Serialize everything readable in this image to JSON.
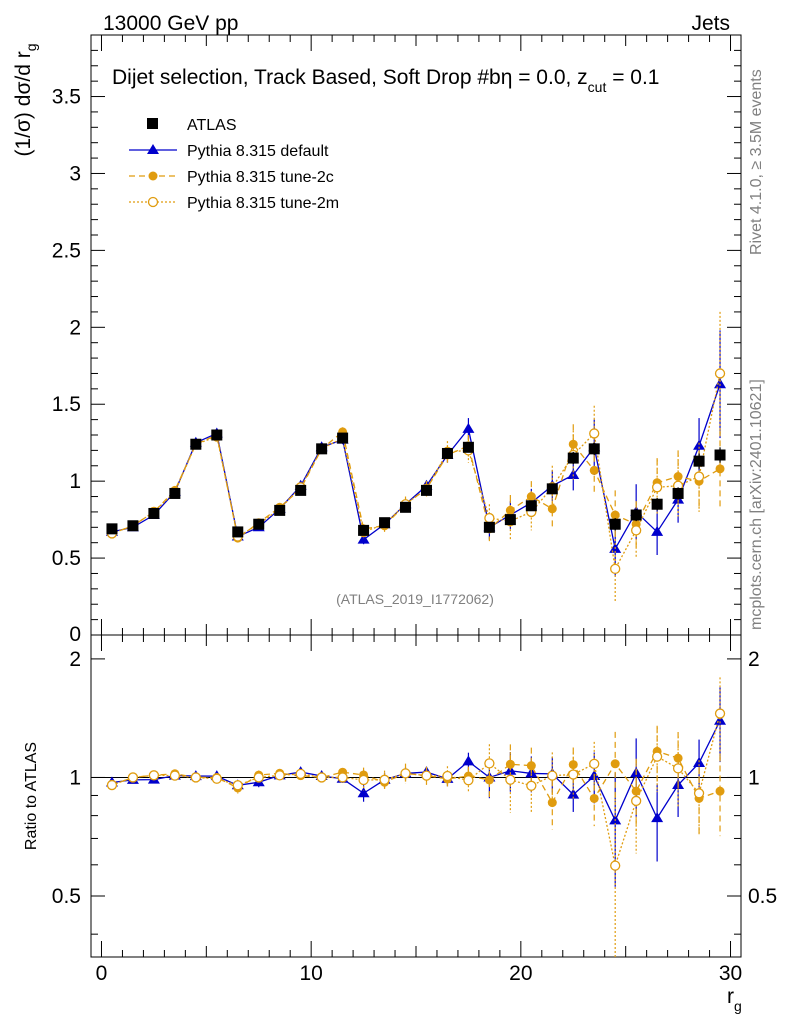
{
  "header": {
    "left": "13000 GeV pp",
    "right": "Jets"
  },
  "chart_data": [
    {
      "type": "line",
      "panel": "main",
      "title": "Dijet selection, Track Based, Soft Drop #b",
      "title_suffix": "η = 0.0, z",
      "title_sub": "cut",
      "title_end": " = 0.1",
      "ylabel": "(1/σ) dσ/d r",
      "ylabel_sub": "g",
      "xlim": [
        -0.5,
        30.5
      ],
      "ylim": [
        0,
        3.9
      ],
      "yticks": [
        "0.5",
        "1",
        "1.5",
        "2",
        "2.5",
        "3",
        "3.5"
      ],
      "ytick_values": [
        0.5,
        1,
        1.5,
        2,
        2.5,
        3,
        3.5
      ],
      "bottom_tick_label": "0",
      "watermark": "(ATLAS_2019_I1772062)",
      "x": [
        0.5,
        1.5,
        2.5,
        3.5,
        4.5,
        5.5,
        6.5,
        7.5,
        8.5,
        9.5,
        10.5,
        11.5,
        12.5,
        13.5,
        14.5,
        15.5,
        16.5,
        17.5,
        18.5,
        19.5,
        20.5,
        21.5,
        22.5,
        23.5,
        24.5,
        25.5,
        26.5,
        27.5,
        28.5,
        29.5
      ],
      "series": [
        {
          "name": "ATLAS",
          "style": "data",
          "values": [
            0.69,
            0.71,
            0.79,
            0.92,
            1.24,
            1.3,
            0.67,
            0.72,
            0.81,
            0.94,
            1.21,
            1.28,
            0.68,
            0.73,
            0.83,
            0.94,
            1.18,
            1.22,
            0.7,
            0.75,
            0.84,
            0.95,
            1.15,
            1.21,
            0.72,
            0.78,
            0.85,
            0.92,
            1.13,
            1.17
          ],
          "errors": [
            0.01,
            0.01,
            0.01,
            0.01,
            0.01,
            0.02,
            0.02,
            0.01,
            0.01,
            0.01,
            0.02,
            0.02,
            0.02,
            0.02,
            0.02,
            0.02,
            0.02,
            0.03,
            0.03,
            0.03,
            0.03,
            0.03,
            0.04,
            0.04,
            0.04,
            0.04,
            0.04,
            0.04,
            0.05,
            0.05
          ]
        },
        {
          "name": "Pythia 8.315 default",
          "style": "default",
          "values": [
            0.67,
            0.7,
            0.78,
            0.93,
            1.25,
            1.31,
            0.64,
            0.7,
            0.82,
            0.97,
            1.22,
            1.27,
            0.62,
            0.72,
            0.85,
            0.97,
            1.17,
            1.34,
            0.7,
            0.78,
            0.86,
            0.97,
            1.04,
            1.22,
            0.56,
            0.8,
            0.67,
            0.88,
            1.23,
            1.63
          ],
          "errors": [
            0.01,
            0.01,
            0.01,
            0.01,
            0.02,
            0.02,
            0.02,
            0.02,
            0.02,
            0.02,
            0.02,
            0.03,
            0.03,
            0.03,
            0.03,
            0.03,
            0.05,
            0.07,
            0.08,
            0.09,
            0.09,
            0.1,
            0.1,
            0.18,
            0.18,
            0.18,
            0.15,
            0.15,
            0.18,
            0.35
          ]
        },
        {
          "name": "Pythia 8.315 tune-2c",
          "style": "tune2c",
          "values": [
            0.66,
            0.71,
            0.8,
            0.94,
            1.24,
            1.3,
            0.63,
            0.73,
            0.83,
            0.95,
            1.21,
            1.32,
            0.69,
            0.71,
            0.85,
            0.95,
            1.17,
            1.23,
            0.69,
            0.81,
            0.9,
            0.82,
            1.24,
            1.07,
            0.78,
            0.72,
            0.99,
            1.03,
            1.0,
            1.08
          ],
          "errors": [
            0.01,
            0.01,
            0.01,
            0.01,
            0.02,
            0.02,
            0.02,
            0.02,
            0.02,
            0.02,
            0.02,
            0.03,
            0.03,
            0.04,
            0.04,
            0.05,
            0.06,
            0.07,
            0.08,
            0.1,
            0.1,
            0.12,
            0.13,
            0.16,
            0.16,
            0.15,
            0.16,
            0.17,
            0.2,
            0.25
          ]
        },
        {
          "name": "Pythia 8.315 tune-2m",
          "style": "tune2m",
          "values": [
            0.66,
            0.71,
            0.8,
            0.93,
            1.24,
            1.29,
            0.64,
            0.72,
            0.82,
            0.96,
            1.21,
            1.28,
            0.67,
            0.72,
            0.85,
            0.95,
            1.19,
            1.2,
            0.76,
            0.74,
            0.8,
            0.96,
            1.17,
            1.31,
            0.43,
            0.68,
            0.96,
            0.97,
            1.03,
            1.7
          ],
          "errors": [
            0.01,
            0.01,
            0.01,
            0.01,
            0.02,
            0.02,
            0.02,
            0.02,
            0.02,
            0.02,
            0.02,
            0.03,
            0.04,
            0.04,
            0.05,
            0.05,
            0.07,
            0.08,
            0.09,
            0.13,
            0.12,
            0.14,
            0.16,
            0.18,
            0.22,
            0.18,
            0.18,
            0.2,
            0.22,
            0.4
          ]
        }
      ]
    },
    {
      "type": "line",
      "panel": "ratio",
      "ylabel": "Ratio to ATLAS",
      "xlabel": "r",
      "xlabel_sub": "g",
      "xlim": [
        -0.5,
        30.5
      ],
      "ylim": [
        0.35,
        2.3
      ],
      "yticks_left": [
        "0.5",
        "1",
        "2"
      ],
      "yticks_right": [
        "0.5",
        "1",
        "2"
      ],
      "ytick_values": [
        0.5,
        1,
        2
      ],
      "xticks": [
        "0",
        "10",
        "20",
        "30"
      ],
      "xtick_values": [
        0,
        10,
        20,
        30
      ],
      "reference_line": 1.0
    }
  ],
  "side_labels": {
    "rivet": "Rivet 4.1.0, ≥ 3.5M events",
    "mcplots": "mcplots.cern.ch [arXiv:2401.10621]"
  }
}
